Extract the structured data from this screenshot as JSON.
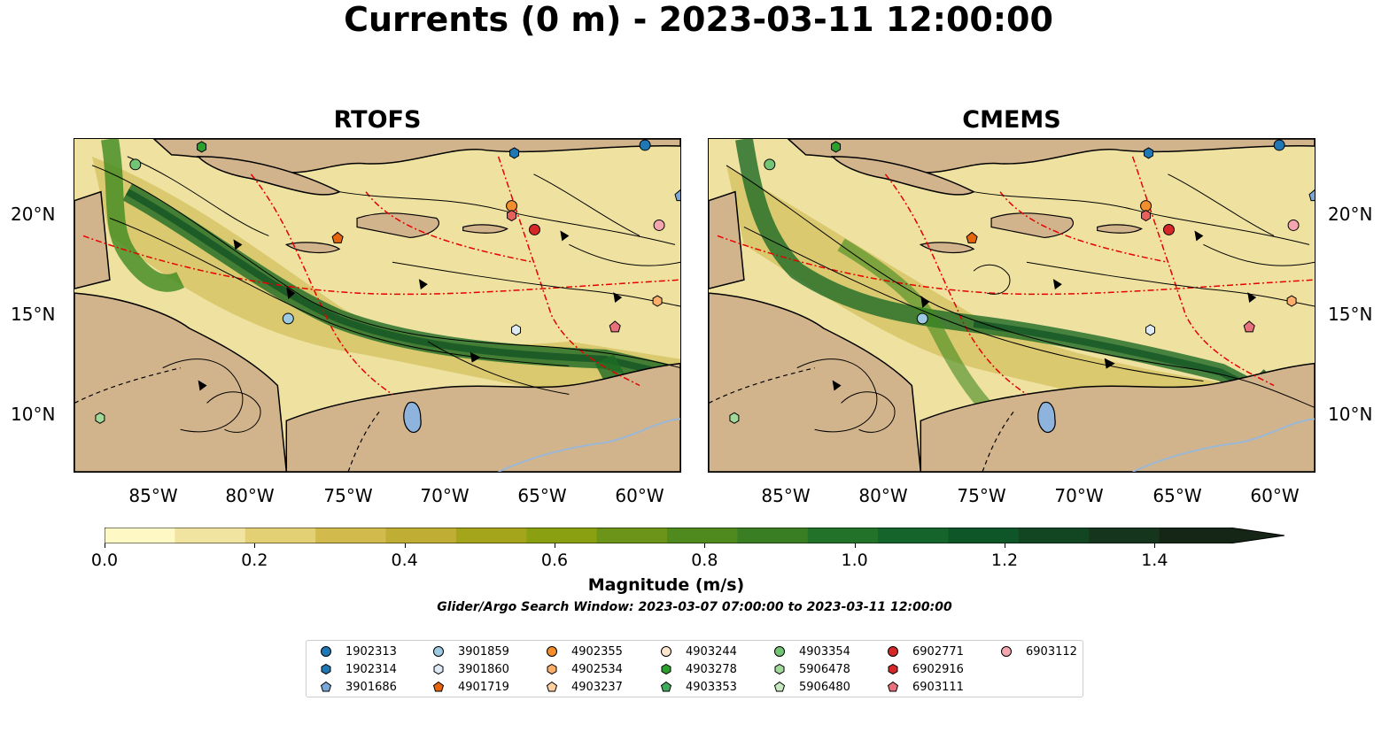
{
  "title": "Currents (0 m) - 2023-03-11 12:00:00",
  "panels": [
    {
      "title": "RTOFS"
    },
    {
      "title": "CMEMS"
    }
  ],
  "lat_labels": [
    "20°N",
    "15°N",
    "10°N"
  ],
  "lon_labels": [
    "85°W",
    "80°W",
    "75°W",
    "70°W",
    "65°W",
    "60°W"
  ],
  "colorbar": {
    "label": "Magnitude (m/s)",
    "ticks": [
      "0.0",
      "0.2",
      "0.4",
      "0.6",
      "0.8",
      "1.0",
      "1.2",
      "1.4"
    ],
    "range": [
      0.0,
      1.5
    ],
    "extend": "max",
    "colors": [
      "#fdf8c4",
      "#f1e4a0",
      "#e3cf74",
      "#d2bb4c",
      "#bfae33",
      "#a5a51c",
      "#8aa010",
      "#6c9418",
      "#4f8a1e",
      "#3a7e24",
      "#237229",
      "#15642c",
      "#0e5527",
      "#124623",
      "#15351c",
      "#152616"
    ]
  },
  "search_window": "Glider/Argo Search Window: 2023-03-07 07:00:00 to 2023-03-11 12:00:00",
  "legend": [
    {
      "id": "1902313",
      "marker": "circle",
      "color": "#1f77b4"
    },
    {
      "id": "1902314",
      "marker": "hexagon",
      "color": "#1f77b4"
    },
    {
      "id": "3901686",
      "marker": "pentagon",
      "color": "#7aa6d8"
    },
    {
      "id": "3901859",
      "marker": "circle",
      "color": "#9ecae1"
    },
    {
      "id": "3901860",
      "marker": "hexagon",
      "color": "#deebf7"
    },
    {
      "id": "4901719",
      "marker": "pentagon",
      "color": "#e6640c"
    },
    {
      "id": "4902355",
      "marker": "circle",
      "color": "#f28e2b"
    },
    {
      "id": "4902534",
      "marker": "hexagon",
      "color": "#fdae6b"
    },
    {
      "id": "4903237",
      "marker": "pentagon",
      "color": "#fdd0a2"
    },
    {
      "id": "4903244",
      "marker": "circle",
      "color": "#fee6ce"
    },
    {
      "id": "4903278",
      "marker": "hexagon",
      "color": "#2ca02c"
    },
    {
      "id": "4903353",
      "marker": "pentagon",
      "color": "#41ab5d"
    },
    {
      "id": "4903354",
      "marker": "circle",
      "color": "#74c476"
    },
    {
      "id": "5906478",
      "marker": "hexagon",
      "color": "#a1d99b"
    },
    {
      "id": "5906480",
      "marker": "pentagon",
      "color": "#c7e9c0"
    },
    {
      "id": "6902771",
      "marker": "circle",
      "color": "#d62728"
    },
    {
      "id": "6902916",
      "marker": "hexagon",
      "color": "#d62728"
    },
    {
      "id": "6903111",
      "marker": "pentagon",
      "color": "#e7717d"
    },
    {
      "id": "6903112",
      "marker": "circle",
      "color": "#f4a6b0"
    }
  ]
}
